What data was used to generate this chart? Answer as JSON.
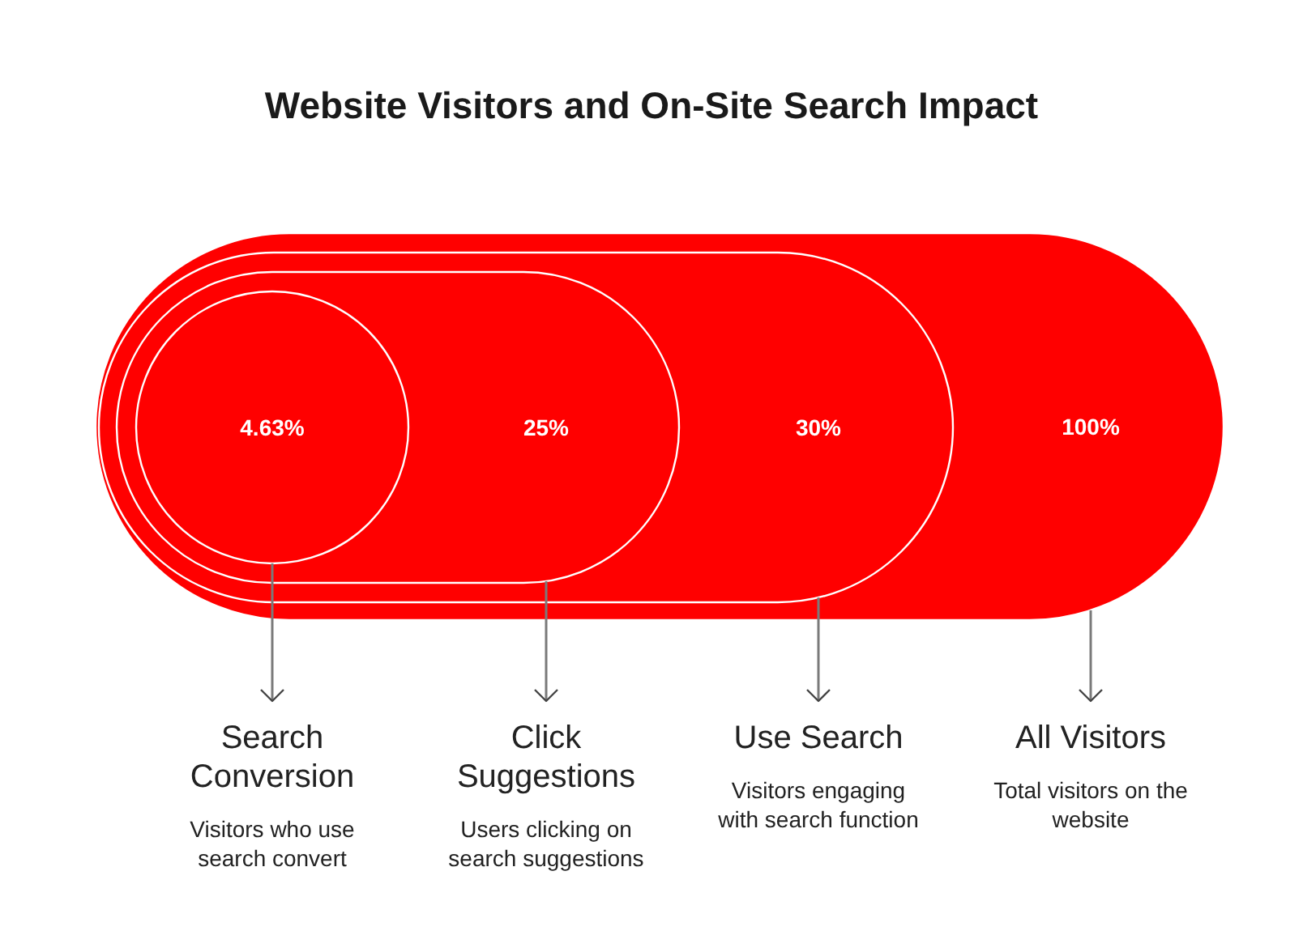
{
  "chart_data": {
    "type": "other",
    "title": "Website Visitors and On-Site Search Impact",
    "categories": [
      "Search Conversion",
      "Click Suggestions",
      "Use Search",
      "All Visitors"
    ],
    "values": [
      4.63,
      25,
      30,
      100
    ],
    "value_labels": [
      "4.63%",
      "25%",
      "30%",
      "100%"
    ],
    "colors": [
      "#ff0000",
      "#ff0000",
      "#ff0000",
      "#ff0000"
    ],
    "annotations": [
      "Visitors who use search convert",
      "Users clicking on search suggestions",
      "Visitors engaging with search function",
      "Total visitors on the website"
    ]
  }
}
